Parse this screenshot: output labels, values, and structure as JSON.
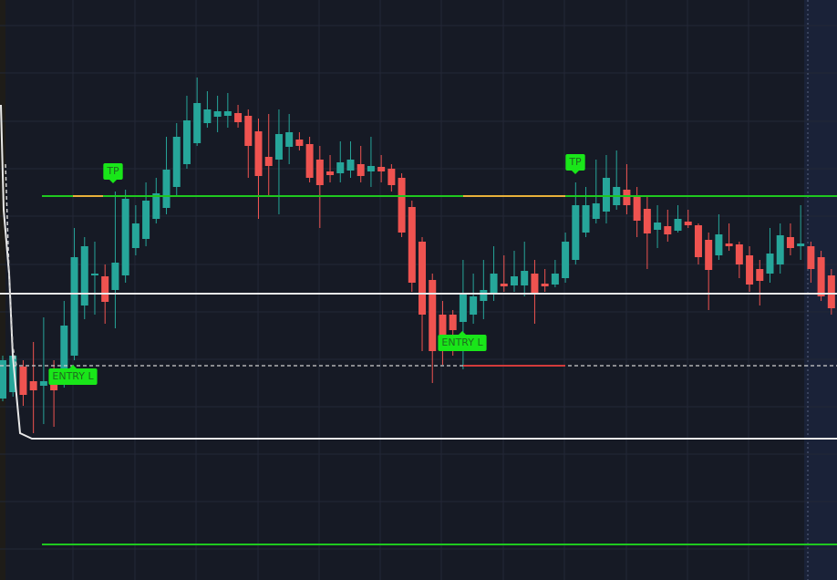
{
  "chart_data": {
    "type": "candlestick",
    "ylim": [
      0,
      636
    ],
    "up_color": "#26a69a",
    "down_color": "#ef5350",
    "open": [
      199,
      206,
      234,
      218,
      213,
      221,
      216,
      246,
      301,
      334,
      333,
      318,
      334,
      364,
      374,
      396,
      408,
      431,
      456,
      479,
      501,
      508,
      509,
      512,
      509,
      492,
      464,
      461,
      475,
      483,
      478,
      461,
      448,
      446,
      449,
      456,
      448,
      453,
      451,
      441,
      409,
      371,
      329,
      291,
      291,
      283,
      291,
      306,
      314,
      325,
      323,
      323,
      336,
      325,
      324,
      331,
      351,
      381,
      396,
      404,
      411,
      428,
      421,
      407,
      384,
      388,
      383,
      393,
      389,
      373,
      356,
      369,
      368,
      356,
      341,
      336,
      346,
      376,
      366,
      366,
      354,
      334
    ],
    "high": [
      246,
      251,
      241,
      261,
      288,
      241,
      306,
      386,
      376,
      371,
      346,
      426,
      428,
      411,
      436,
      441,
      486,
      501,
      531,
      551,
      536,
      531,
      534,
      521,
      516,
      506,
      511,
      516,
      511,
      491,
      486,
      476,
      466,
      481,
      481,
      476,
      486,
      466,
      456,
      446,
      416,
      376,
      336,
      306,
      296,
      351,
      336,
      351,
      366,
      356,
      361,
      371,
      351,
      341,
      351,
      381,
      436,
      431,
      461,
      466,
      471,
      456,
      431,
      421,
      411,
      406,
      411,
      406,
      391,
      381,
      401,
      391,
      371,
      366,
      351,
      386,
      391,
      391,
      411,
      371,
      361,
      341
    ],
    "low": [
      196,
      201,
      191,
      161,
      171,
      168,
      211,
      241,
      286,
      291,
      281,
      276,
      326,
      356,
      366,
      391,
      401,
      421,
      451,
      476,
      496,
      491,
      496,
      496,
      441,
      396,
      421,
      401,
      456,
      471,
      436,
      386,
      436,
      436,
      441,
      436,
      431,
      436,
      426,
      376,
      316,
      251,
      216,
      236,
      246,
      231,
      281,
      286,
      306,
      316,
      316,
      311,
      281,
      316,
      321,
      326,
      346,
      376,
      391,
      391,
      406,
      401,
      376,
      341,
      364,
      371,
      381,
      386,
      346,
      296,
      351,
      361,
      331,
      316,
      301,
      326,
      336,
      356,
      351,
      326,
      306,
      291
    ],
    "close": [
      241,
      246,
      203,
      208,
      218,
      208,
      279,
      354,
      366,
      336,
      305,
      348,
      418,
      391,
      416,
      424,
      450,
      486,
      504,
      523,
      516,
      514,
      514,
      502,
      476,
      443,
      454,
      489,
      491,
      476,
      441,
      433,
      444,
      458,
      461,
      443,
      454,
      448,
      433,
      381,
      326,
      291,
      251,
      254,
      274,
      314,
      311,
      318,
      336,
      322,
      333,
      339,
      313,
      322,
      336,
      371,
      411,
      411,
      413,
      441,
      431,
      411,
      394,
      380,
      392,
      379,
      396,
      389,
      354,
      340,
      379,
      366,
      346,
      324,
      328,
      358,
      378,
      364,
      369,
      341,
      311,
      298
    ],
    "levels": [
      {
        "value": 421,
        "color": "#1fc81f",
        "style": "solid"
      },
      {
        "value": 314,
        "color": "#e8e8e8",
        "style": "solid"
      },
      {
        "value": 235,
        "color": "#cfcfcf",
        "style": "dashed"
      },
      {
        "value": 155,
        "color": "#e8e8e8",
        "style": "solid"
      },
      {
        "value": 39,
        "color": "#1fc81f",
        "style": "solid"
      }
    ],
    "annotations": [
      "TP",
      "ENTRY L",
      "ENTRY L",
      "TP"
    ]
  }
}
